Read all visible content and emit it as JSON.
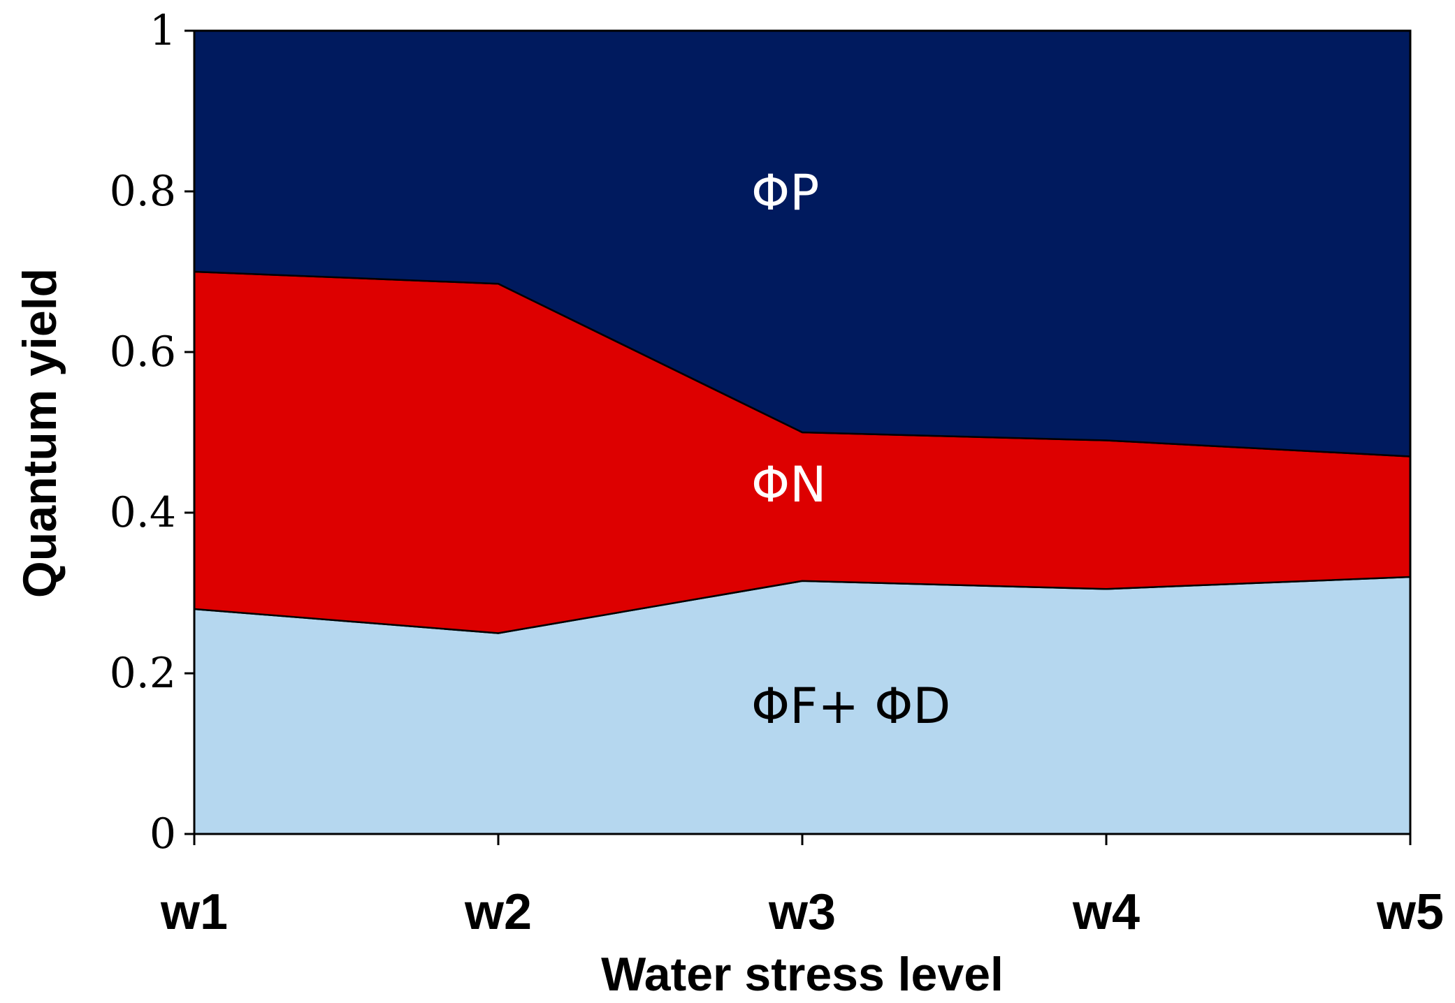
{
  "chart_data": {
    "type": "area",
    "stacked": true,
    "title": "",
    "xlabel": "Water stress level",
    "ylabel": "Quantum yield",
    "categories": [
      "w1",
      "w2",
      "w3",
      "w4",
      "w5"
    ],
    "ylim": [
      0,
      1
    ],
    "yticks": [
      0,
      0.2,
      0.4,
      0.6,
      0.8,
      1
    ],
    "ytick_labels": [
      "0",
      "0.2",
      "0.4",
      "0.6",
      "0.8",
      "1"
    ],
    "series": [
      {
        "name": "ΦF+ ΦD",
        "values": [
          0.28,
          0.25,
          0.315,
          0.305,
          0.32
        ],
        "color": "#b5d7ef",
        "label_color": "#000000"
      },
      {
        "name": "ΦN",
        "values": [
          0.42,
          0.435,
          0.185,
          0.185,
          0.15
        ],
        "color": "#dd0000",
        "label_color": "#ffffff"
      },
      {
        "name": "ΦP",
        "values": [
          0.3,
          0.315,
          0.5,
          0.51,
          0.53
        ],
        "color": "#001a5e",
        "label_color": "#ffffff"
      }
    ],
    "legend": "inline-labels",
    "grid": false
  }
}
